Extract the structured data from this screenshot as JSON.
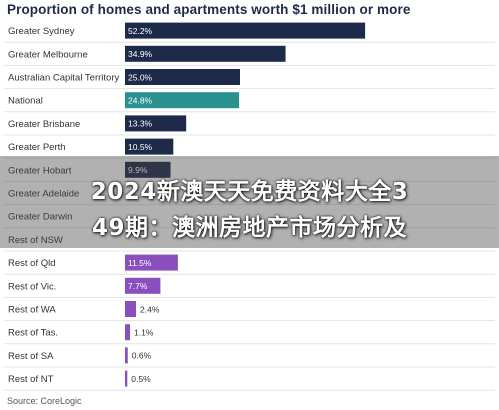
{
  "chart_data": {
    "type": "bar",
    "orientation": "horizontal",
    "title": "Proportion of homes and apartments worth $1 million or more",
    "categories": [
      "Greater Sydney",
      "Greater Melbourne",
      "Australian Capital Territory",
      "National",
      "Greater Brisbane",
      "Greater Perth",
      "Greater Hobart",
      "Greater Adelaide",
      "Greater Darwin",
      "Rest of NSW",
      "Rest of Qld",
      "Rest of Vic.",
      "Rest of WA",
      "Rest of Tas.",
      "Rest of SA",
      "Rest of NT"
    ],
    "values": [
      52.2,
      34.9,
      25.0,
      24.8,
      13.3,
      10.5,
      9.9,
      null,
      null,
      null,
      11.5,
      7.7,
      2.4,
      1.1,
      0.6,
      0.5
    ],
    "value_labels": [
      "52.2%",
      "34.9%",
      "25.0%",
      "24.8%",
      "13.3%",
      "10.5%",
      "9.9%",
      "",
      "",
      "",
      "11.5%",
      "7.7%",
      "2.4%",
      "1.1%",
      "0.6%",
      "0.5%"
    ],
    "bar_colors": [
      "#1e2a4a",
      "#1e2a4a",
      "#1e2a4a",
      "#2a9090",
      "#1e2a4a",
      "#1e2a4a",
      "#1e2a4a",
      "#1e2a4a",
      "#1e2a4a",
      "#1e2a4a",
      "#8a4fbf",
      "#8a4fbf",
      "#8a4fbf",
      "#8a4fbf",
      "#8a4fbf",
      "#8a4fbf"
    ],
    "xlim": [
      0,
      100
    ],
    "grid": false,
    "legend": "none"
  },
  "overlay": {
    "line1": "2024新澳天天免费资料大全3",
    "line2": "49期：澳洲房地产市场分析及"
  },
  "source": "Source: CoreLogic"
}
